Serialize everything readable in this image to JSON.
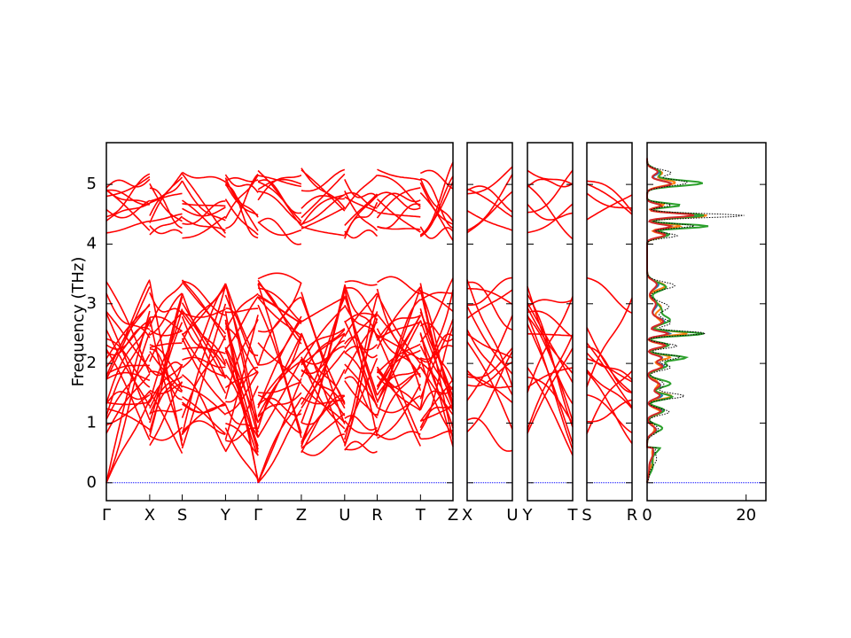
{
  "figure": {
    "ylabel": "Frequency (THz)"
  },
  "chart_data": [
    {
      "type": "line",
      "panel": "band-main",
      "segments": [
        "Γ-X",
        "X-S",
        "S-Y",
        "Y-Γ",
        "Γ-Z",
        "Z-U",
        "U-R",
        "R-T",
        "T-Z"
      ],
      "x_tick_labels": [
        "Γ",
        "X",
        "S",
        "Y",
        "Γ",
        "Z",
        "U",
        "R",
        "T",
        "Z"
      ],
      "x_tick_positions": [
        0,
        0.8,
        1.4,
        2.2,
        2.8,
        3.6,
        4.4,
        5.0,
        5.8,
        6.4
      ],
      "ylim": [
        -0.3,
        5.7
      ],
      "y_ticks": [
        0,
        1,
        2,
        3,
        4,
        5
      ],
      "series_color": "#ff0000",
      "zero_line_color": "#0000ff",
      "acoustic_at_gamma": [
        0,
        2.8
      ],
      "gap_thz": [
        3.45,
        4.05
      ],
      "optical_low_range": [
        0.5,
        3.45
      ],
      "optical_high_range": [
        4.05,
        5.4
      ]
    },
    {
      "type": "line",
      "panel": "band-x-u",
      "x_tick_labels": [
        "X",
        "U"
      ],
      "x_tick_positions": [
        0,
        1
      ],
      "ylim": [
        -0.3,
        5.7
      ],
      "series_color": "#ff0000"
    },
    {
      "type": "line",
      "panel": "band-y-t",
      "x_tick_labels": [
        "Y",
        "T"
      ],
      "x_tick_positions": [
        0,
        1
      ],
      "ylim": [
        -0.3,
        5.7
      ],
      "series_color": "#ff0000"
    },
    {
      "type": "line",
      "panel": "band-s-r",
      "x_tick_labels": [
        "S",
        "R"
      ],
      "x_tick_positions": [
        0,
        1
      ],
      "ylim": [
        -0.3,
        5.7
      ],
      "series_color": "#ff0000"
    },
    {
      "type": "line",
      "panel": "dos",
      "orientation": "horizontal",
      "x_tick_labels": [
        "0",
        "20"
      ],
      "x_tick_values": [
        0,
        20
      ],
      "xlim": [
        0,
        24
      ],
      "ylim": [
        -0.3,
        5.7
      ],
      "series": [
        {
          "color": "#1f77b4",
          "style": "solid",
          "weight": 0.55
        },
        {
          "color": "#ff7f0e",
          "style": "solid",
          "weight": 0.65
        },
        {
          "color": "#2ca02c",
          "style": "solid",
          "weight": 0.9
        },
        {
          "color": "#d62728",
          "style": "solid",
          "weight": 0.5
        },
        {
          "color": "#000000",
          "style": "dotted",
          "weight": 1.0,
          "role": "total"
        }
      ],
      "dos_peaks": [
        {
          "f": 0.9,
          "w": 0.1,
          "a": 3.0
        },
        {
          "f": 1.2,
          "w": 0.08,
          "a": 4.5
        },
        {
          "f": 1.45,
          "w": 0.07,
          "a": 6.0
        },
        {
          "f": 1.65,
          "w": 0.1,
          "a": 4.5
        },
        {
          "f": 1.95,
          "w": 0.08,
          "a": 5.0
        },
        {
          "f": 2.1,
          "w": 0.06,
          "a": 7.0
        },
        {
          "f": 2.3,
          "w": 0.06,
          "a": 6.0
        },
        {
          "f": 2.5,
          "w": 0.05,
          "a": 11.0
        },
        {
          "f": 2.7,
          "w": 0.1,
          "a": 5.0
        },
        {
          "f": 2.95,
          "w": 0.15,
          "a": 3.5
        },
        {
          "f": 3.3,
          "w": 0.1,
          "a": 4.5
        },
        {
          "f": 4.15,
          "w": 0.06,
          "a": 6.0
        },
        {
          "f": 4.3,
          "w": 0.05,
          "a": 11.0
        },
        {
          "f": 4.48,
          "w": 0.05,
          "a": 17.0
        },
        {
          "f": 4.65,
          "w": 0.05,
          "a": 6.0
        },
        {
          "f": 5.02,
          "w": 0.07,
          "a": 10.0
        },
        {
          "f": 5.2,
          "w": 0.08,
          "a": 4.0
        }
      ]
    }
  ]
}
